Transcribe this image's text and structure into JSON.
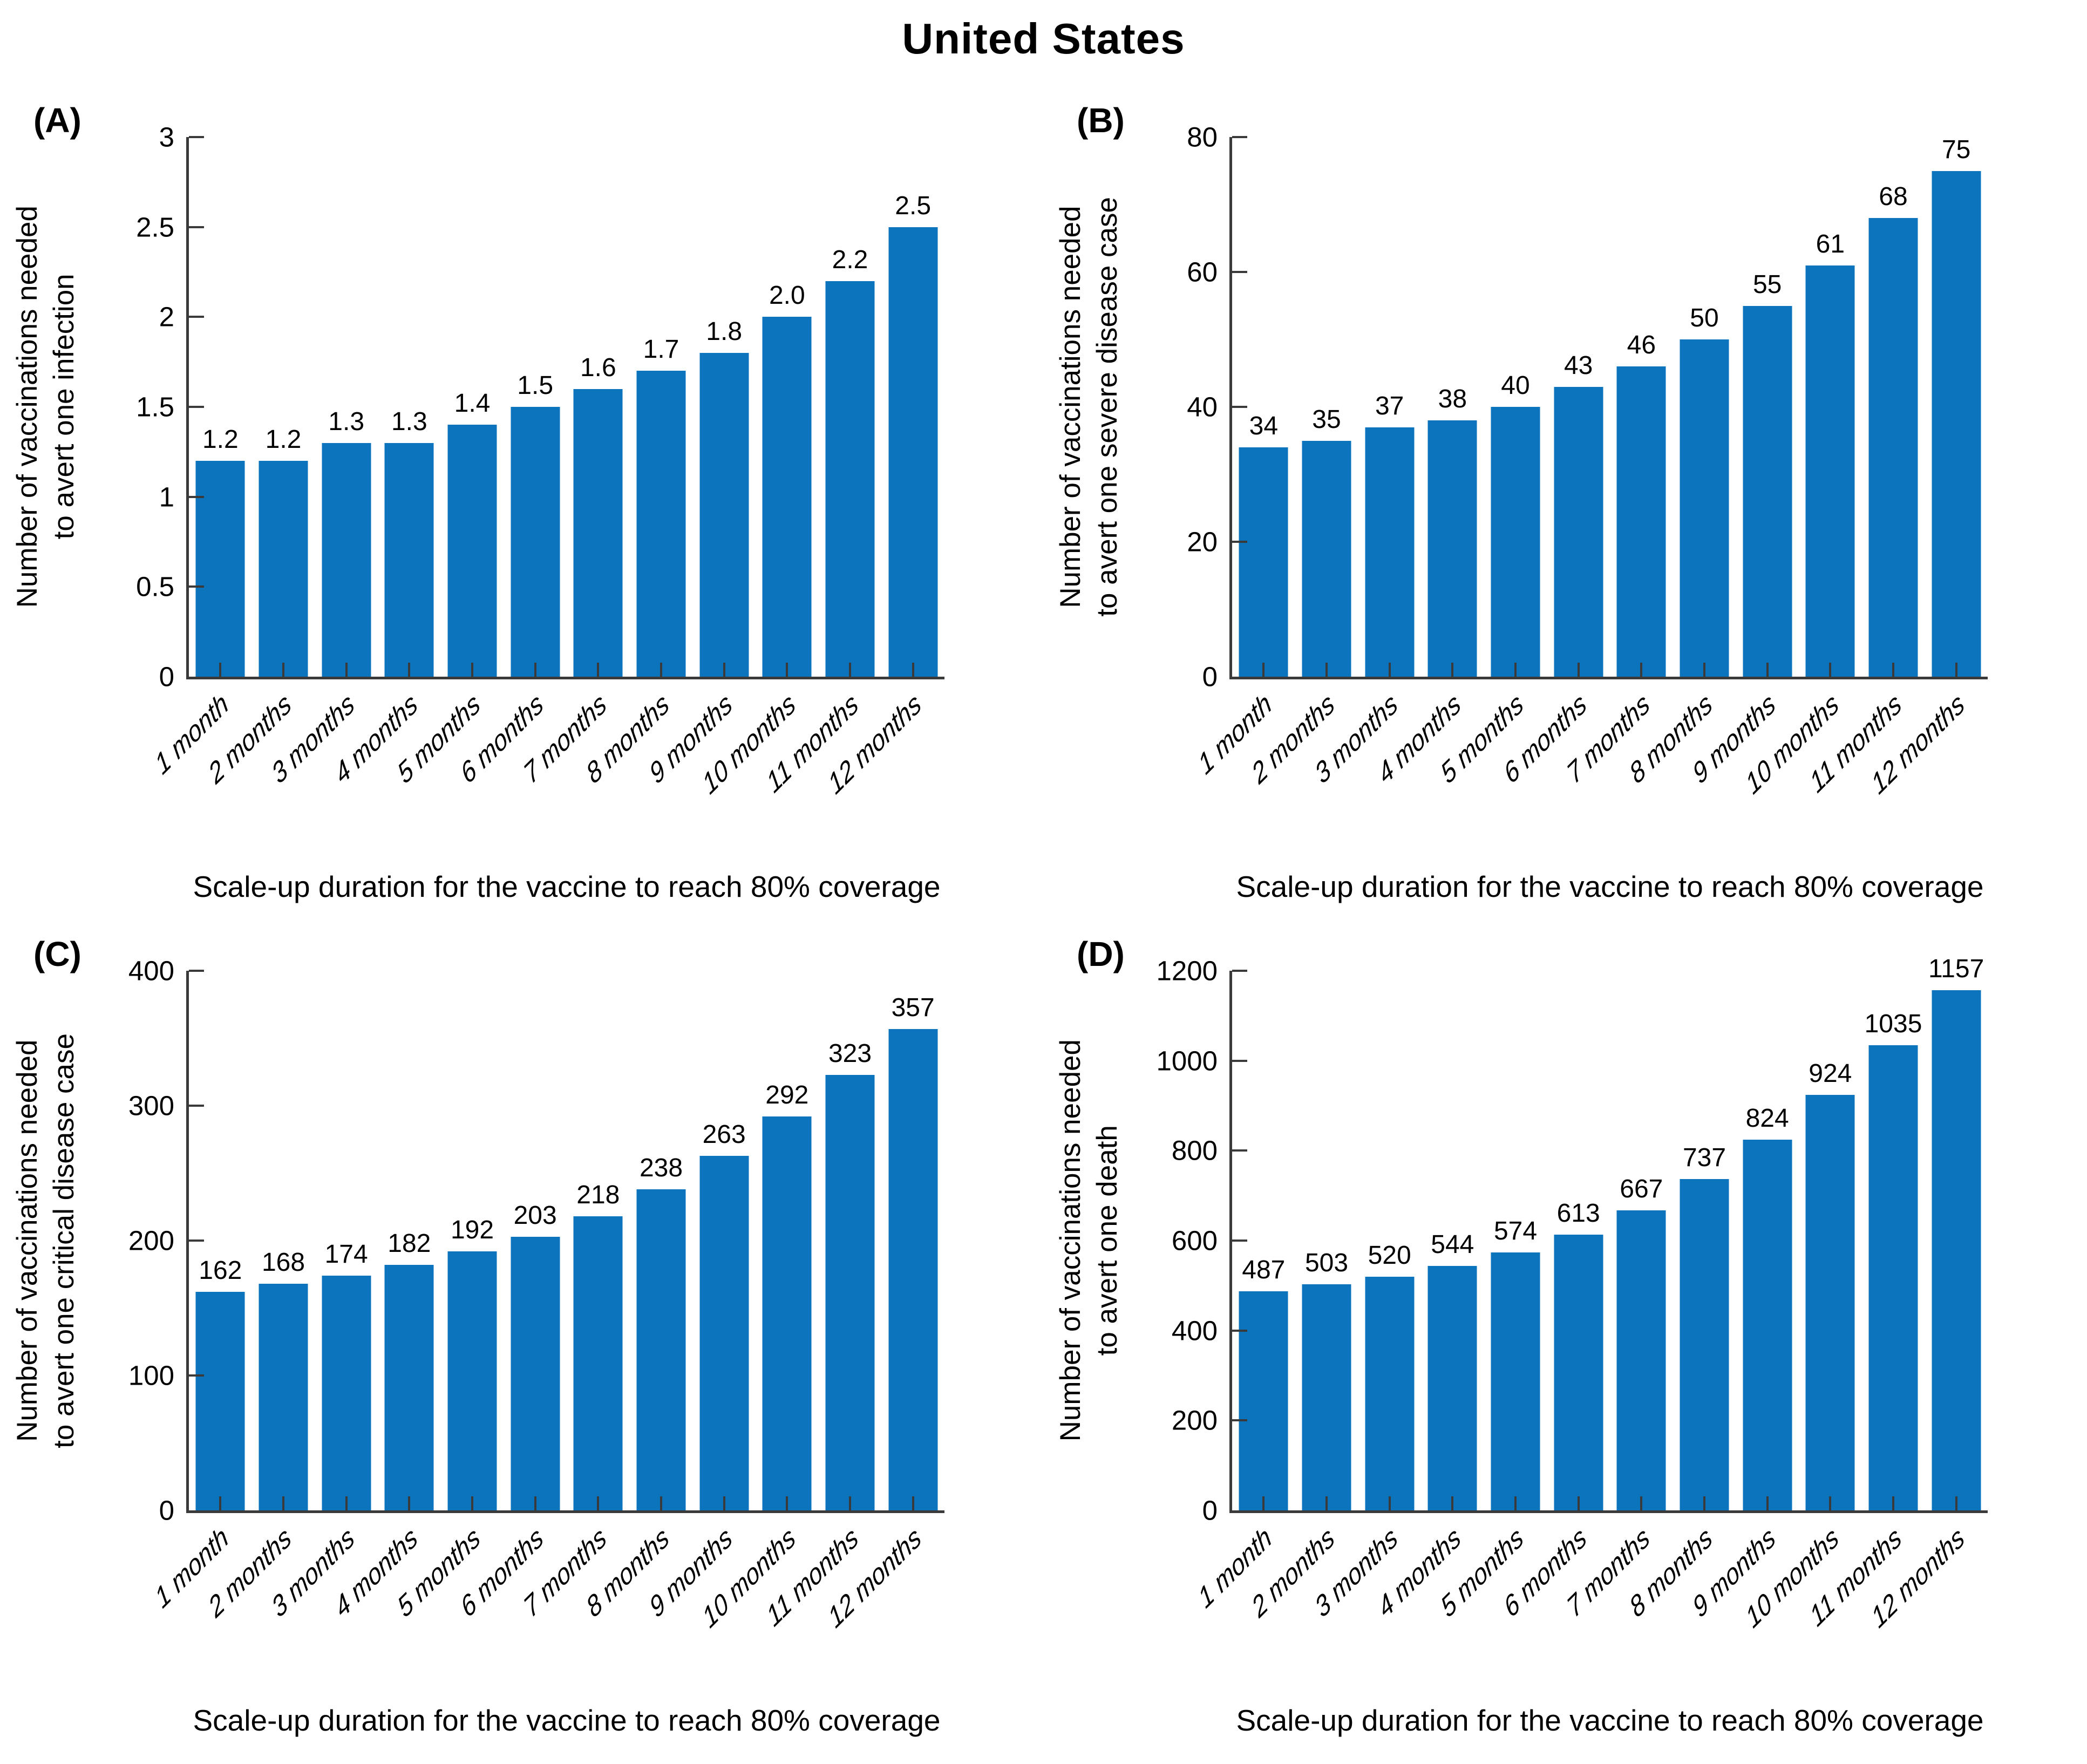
{
  "figure_title": "United States",
  "colors": {
    "bar": "#0c73bd",
    "axis": "#3a3a3a",
    "text": "#000000"
  },
  "chart_data": [
    {
      "panel": "(A)",
      "type": "bar",
      "categories": [
        "1 month",
        "2 months",
        "3 months",
        "4 months",
        "5 months",
        "6 months",
        "7 months",
        "8 months",
        "9 months",
        "10 months",
        "11 months",
        "12 months"
      ],
      "values": [
        1.2,
        1.2,
        1.3,
        1.3,
        1.4,
        1.5,
        1.6,
        1.7,
        1.8,
        2.0,
        2.2,
        2.5
      ],
      "value_labels": [
        "1.2",
        "1.2",
        "1.3",
        "1.3",
        "1.4",
        "1.5",
        "1.6",
        "1.7",
        "1.8",
        "2.0",
        "2.2",
        "2.5"
      ],
      "title": "",
      "ylabel_lines": [
        "Number of vaccinations needed",
        "to avert one infection"
      ],
      "xlabel": "Scale-up duration for the vaccine to reach 80% coverage",
      "ylim": [
        0,
        3
      ],
      "yticks": [
        0,
        0.5,
        1,
        1.5,
        2,
        2.5,
        3
      ],
      "ytick_labels": [
        "0",
        "0.5",
        "1",
        "1.5",
        "2",
        "2.5",
        "3"
      ],
      "grid": false,
      "legend": "none",
      "bar_color": "#0c73bd"
    },
    {
      "panel": "(B)",
      "type": "bar",
      "categories": [
        "1 month",
        "2 months",
        "3 months",
        "4 months",
        "5 months",
        "6 months",
        "7 months",
        "8 months",
        "9 months",
        "10 months",
        "11 months",
        "12 months"
      ],
      "values": [
        34,
        35,
        37,
        38,
        40,
        43,
        46,
        50,
        55,
        61,
        68,
        75
      ],
      "value_labels": [
        "34",
        "35",
        "37",
        "38",
        "40",
        "43",
        "46",
        "50",
        "55",
        "61",
        "68",
        "75"
      ],
      "title": "",
      "ylabel_lines": [
        "Number of vaccinations needed",
        "to avert one severe disease case"
      ],
      "xlabel": "Scale-up duration for the vaccine to reach 80% coverage",
      "ylim": [
        0,
        80
      ],
      "yticks": [
        0,
        20,
        40,
        60,
        80
      ],
      "ytick_labels": [
        "0",
        "20",
        "40",
        "60",
        "80"
      ],
      "grid": false,
      "legend": "none",
      "bar_color": "#0c73bd"
    },
    {
      "panel": "(C)",
      "type": "bar",
      "categories": [
        "1 month",
        "2 months",
        "3 months",
        "4 months",
        "5 months",
        "6 months",
        "7 months",
        "8 months",
        "9 months",
        "10 months",
        "11 months",
        "12 months"
      ],
      "values": [
        162,
        168,
        174,
        182,
        192,
        203,
        218,
        238,
        263,
        292,
        323,
        357
      ],
      "value_labels": [
        "162",
        "168",
        "174",
        "182",
        "192",
        "203",
        "218",
        "238",
        "263",
        "292",
        "323",
        "357"
      ],
      "title": "",
      "ylabel_lines": [
        "Number of vaccinations needed",
        "to avert one critical disease case"
      ],
      "xlabel": "Scale-up duration for the vaccine to reach 80% coverage",
      "ylim": [
        0,
        400
      ],
      "yticks": [
        0,
        100,
        200,
        300,
        400
      ],
      "ytick_labels": [
        "0",
        "100",
        "200",
        "300",
        "400"
      ],
      "grid": false,
      "legend": "none",
      "bar_color": "#0c73bd"
    },
    {
      "panel": "(D)",
      "type": "bar",
      "categories": [
        "1 month",
        "2 months",
        "3 months",
        "4 months",
        "5 months",
        "6 months",
        "7 months",
        "8 months",
        "9 months",
        "10 months",
        "11 months",
        "12 months"
      ],
      "values": [
        487,
        503,
        520,
        544,
        574,
        613,
        667,
        737,
        824,
        924,
        1035,
        1157
      ],
      "value_labels": [
        "487",
        "503",
        "520",
        "544",
        "574",
        "613",
        "667",
        "737",
        "824",
        "924",
        "1035",
        "1157"
      ],
      "title": "",
      "ylabel_lines": [
        "Number of vaccinations needed",
        "to avert one death"
      ],
      "xlabel": "Scale-up duration for the vaccine to reach 80% coverage",
      "ylim": [
        0,
        1200
      ],
      "yticks": [
        0,
        200,
        400,
        600,
        800,
        1000,
        1200
      ],
      "ytick_labels": [
        "0",
        "200",
        "400",
        "600",
        "800",
        "1000",
        "1200"
      ],
      "grid": false,
      "legend": "none",
      "bar_color": "#0c73bd"
    }
  ]
}
